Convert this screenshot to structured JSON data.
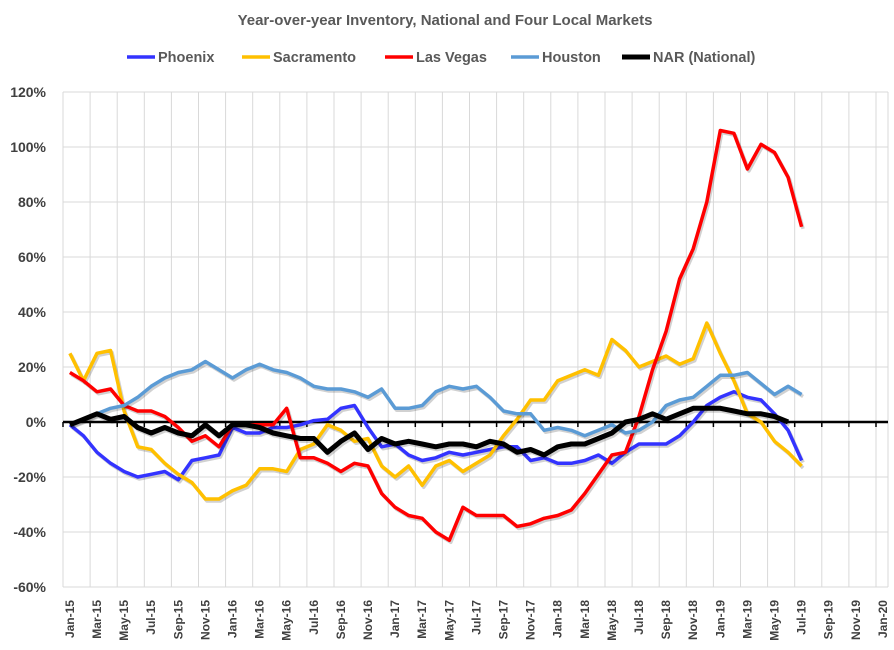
{
  "chart_data": {
    "type": "line",
    "title": "Year-over-year Inventory, National and Four Local Markets",
    "xlabel": "",
    "ylabel": "",
    "ylim": [
      -60,
      120
    ],
    "y_ticks": [
      "-60%",
      "-40%",
      "-20%",
      "0%",
      "20%",
      "40%",
      "60%",
      "80%",
      "100%",
      "120%"
    ],
    "y_tick_values": [
      -60,
      -40,
      -20,
      0,
      20,
      40,
      60,
      80,
      100,
      120
    ],
    "x_tick_labels": [
      "Jan-15",
      "Mar-15",
      "May-15",
      "Jul-15",
      "Sep-15",
      "Nov-15",
      "Jan-16",
      "Mar-16",
      "May-16",
      "Jul-16",
      "Sep-16",
      "Nov-16",
      "Jan-17",
      "Mar-17",
      "May-17",
      "Jul-17",
      "Sep-17",
      "Nov-17",
      "Jan-18",
      "Mar-18",
      "May-18",
      "Jul-18",
      "Sep-18",
      "Nov-18",
      "Jan-19",
      "Mar-19",
      "May-19",
      "Jul-19",
      "Sep-19",
      "Nov-19",
      "Jan-20"
    ],
    "x_start": "Jan-15",
    "x_months": 61,
    "grid": true,
    "legend_position": "top",
    "series": [
      {
        "name": "Phoenix",
        "color": "#3333FF",
        "values": [
          -1,
          -5,
          -11,
          -15,
          -18,
          -20,
          -19,
          -18,
          -21,
          -14,
          -13,
          -12,
          -2,
          -4,
          -4,
          -2,
          -2,
          -1,
          0.5,
          1,
          5,
          6,
          -2,
          -9,
          -8,
          -12,
          -14,
          -13,
          -11,
          -12,
          -11,
          -10,
          -9,
          -9,
          -14,
          -13,
          -15,
          -15,
          -14,
          -12,
          -15,
          -11,
          -8,
          -8,
          -8,
          -5,
          0,
          6,
          9,
          11,
          9,
          8,
          3,
          -3,
          -14
        ]
      },
      {
        "name": "Sacramento",
        "color": "#FFC000",
        "values": [
          25,
          15,
          25,
          26,
          4,
          -9,
          -10,
          -15,
          -19,
          -22,
          -28,
          -28,
          -25,
          -23,
          -17,
          -17,
          -18,
          -10,
          -8,
          -1,
          -3,
          -7,
          -6,
          -16,
          -20,
          -16,
          -23,
          -16,
          -14,
          -18,
          -15,
          -12,
          -5,
          1,
          8,
          8,
          15,
          17,
          19,
          17,
          30,
          26,
          20,
          22,
          24,
          21,
          23,
          36,
          25,
          15,
          3,
          0,
          -7,
          -11,
          -16
        ]
      },
      {
        "name": "Las Vegas",
        "color": "#FF0000",
        "values": [
          18,
          15,
          11,
          12,
          6,
          4,
          4,
          2,
          -2,
          -7,
          -5,
          -9,
          -1,
          -1,
          -1,
          -1,
          5,
          -13,
          -13,
          -15,
          -18,
          -15,
          -16,
          -26,
          -31,
          -34,
          -35,
          -40,
          -43,
          -31,
          -34,
          -34,
          -34,
          -38,
          -37,
          -35,
          -34,
          -32,
          -26,
          -19,
          -12,
          -11,
          2,
          19,
          33,
          52,
          63,
          80,
          106,
          105,
          92,
          101,
          98,
          89,
          71
        ]
      },
      {
        "name": "Houston",
        "color": "#5B9BD5",
        "values": [
          -1,
          1,
          3,
          5,
          6,
          9,
          13,
          16,
          18,
          19,
          22,
          19,
          16,
          19,
          21,
          19,
          18,
          16,
          13,
          12,
          12,
          11,
          9,
          12,
          5,
          5,
          6,
          11,
          13,
          12,
          13,
          9,
          4,
          3,
          3,
          -3,
          -2,
          -3,
          -5,
          -3,
          -1,
          -4,
          -3,
          0,
          6,
          8,
          9,
          13,
          17,
          17,
          18,
          14,
          10,
          13,
          10
        ]
      },
      {
        "name": "NAR (National)",
        "color": "#000000",
        "values": [
          -1,
          1,
          3,
          1,
          2,
          -2,
          -4,
          -2,
          -4,
          -5,
          -1,
          -5,
          -1,
          -1,
          -2,
          -4,
          -5,
          -6,
          -6,
          -11,
          -7,
          -4,
          -10,
          -6,
          -8,
          -7,
          -8,
          -9,
          -8,
          -8,
          -9,
          -7,
          -8,
          -11,
          -10,
          -12,
          -9,
          -8,
          -8,
          -6,
          -4,
          0,
          1,
          3,
          1,
          3,
          5,
          5,
          5,
          4,
          3,
          3,
          2,
          0
        ]
      }
    ]
  }
}
